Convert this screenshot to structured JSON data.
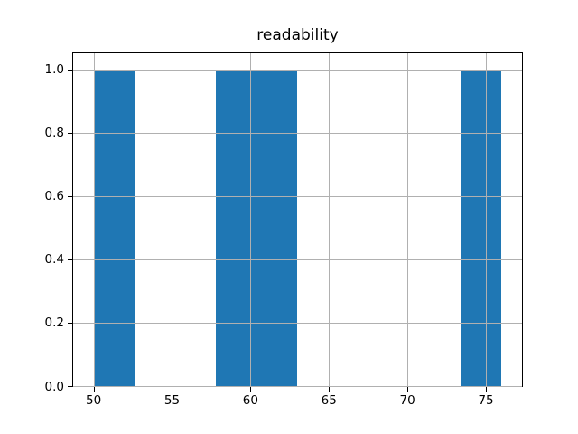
{
  "figure": {
    "background": "#ffffff"
  },
  "chart_data": {
    "type": "bar",
    "subtype": "histogram",
    "title": "readability",
    "xlabel": "",
    "ylabel": "",
    "bin_edges": [
      50.0,
      52.6,
      55.2,
      57.8,
      60.4,
      63.0,
      65.6,
      68.2,
      70.8,
      73.4,
      76.0
    ],
    "counts": [
      1,
      0,
      0,
      1,
      1,
      0,
      0,
      0,
      0,
      1
    ],
    "x_ticks": [
      50,
      55,
      60,
      65,
      70,
      75
    ],
    "x_tick_labels": [
      "50",
      "55",
      "60",
      "65",
      "70",
      "75"
    ],
    "y_ticks": [
      0.0,
      0.2,
      0.4,
      0.6,
      0.8,
      1.0
    ],
    "y_tick_labels": [
      "0.0",
      "0.2",
      "0.4",
      "0.6",
      "0.8",
      "1.0"
    ],
    "xlim": [
      48.7,
      77.3
    ],
    "ylim": [
      0,
      1.05
    ],
    "grid": true,
    "grid_color": "#b0b0b0",
    "bar_color": "#1f77b4",
    "spine_color": "#000000",
    "legend_position": "none"
  }
}
